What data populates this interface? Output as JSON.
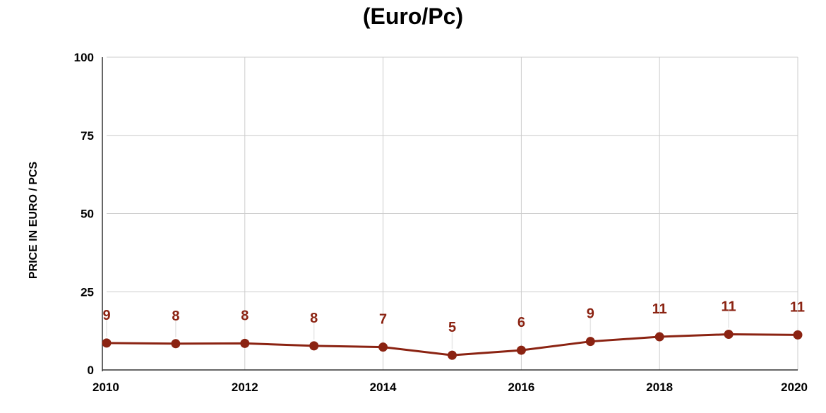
{
  "chart_data": {
    "type": "line",
    "title_lines": [
      "(Euro/Pc)"
    ],
    "xlabel": "",
    "ylabel": "PRICE IN EURO / PCS",
    "xlim": [
      2010,
      2020
    ],
    "ylim": [
      0,
      100
    ],
    "x_ticks": [
      2010,
      2012,
      2014,
      2016,
      2018,
      2020
    ],
    "y_ticks": [
      0,
      25,
      50,
      75,
      100
    ],
    "grid": true,
    "series": [
      {
        "color": "#8b2312",
        "x": [
          2010,
          2011,
          2012,
          2013,
          2014,
          2015,
          2016,
          2017,
          2018,
          2019,
          2020
        ],
        "values": [
          8.6,
          8.4,
          8.5,
          7.7,
          7.3,
          4.7,
          6.3,
          9.1,
          10.6,
          11.4,
          11.2
        ],
        "data_labels": [
          "9",
          "8",
          "8",
          "8",
          "7",
          "5",
          "6",
          "9",
          "11",
          "11",
          "11"
        ]
      }
    ]
  }
}
